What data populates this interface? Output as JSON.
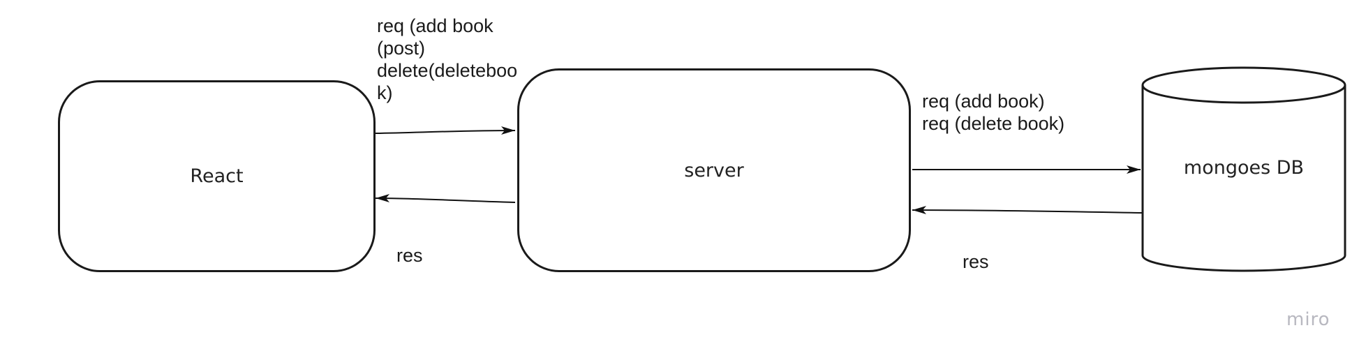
{
  "nodes": {
    "react": "React",
    "server": "server",
    "database": "mongoes DB"
  },
  "edges": {
    "client_to_server_label": "req (add book\n(post)\ndelete(deleteboo\nk)",
    "server_to_client_label": "res",
    "server_to_db_label": "req (add book)\nreq (delete book)",
    "db_to_server_label": "res"
  },
  "watermark": "miro"
}
